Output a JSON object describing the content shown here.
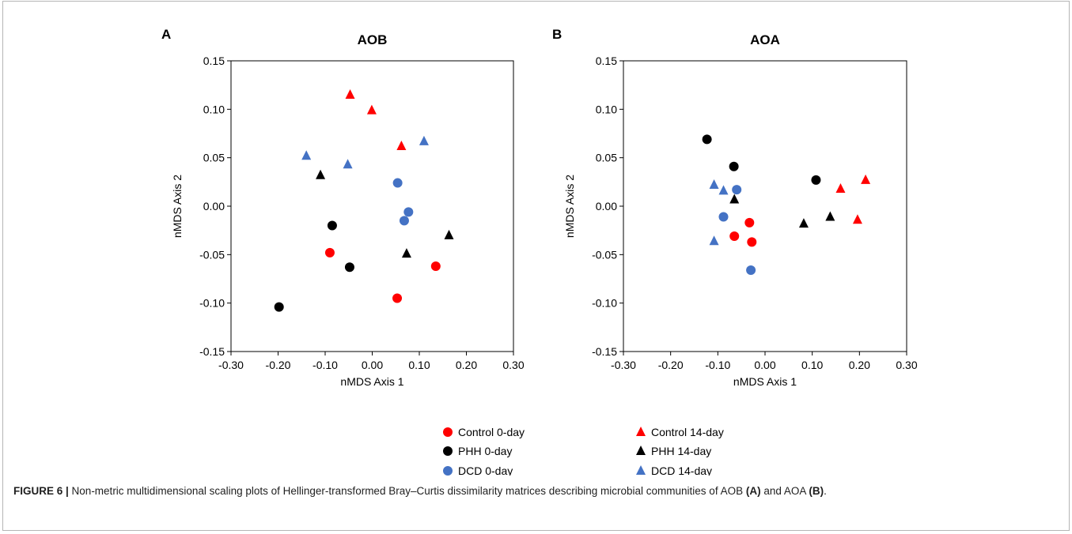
{
  "chart_data": [
    {
      "type": "scatter",
      "panel": "A",
      "title": "AOB",
      "xlabel": "nMDS Axis 1",
      "ylabel": "nMDS Axis 2",
      "xlim": [
        -0.3,
        0.3
      ],
      "ylim": [
        -0.15,
        0.15
      ],
      "xticks": [
        "-0.30",
        "-0.20",
        "-0.10",
        "0.00",
        "0.10",
        "0.20",
        "0.30"
      ],
      "yticks": [
        "0.15",
        "0.10",
        "0.05",
        "0.00",
        "-0.05",
        "-0.10",
        "-0.15"
      ],
      "grid": false,
      "series": [
        {
          "name": "Control 0-day",
          "marker": "circle",
          "color": "#ff0000",
          "x": [
            -0.09,
            0.053,
            0.135
          ],
          "y": [
            -0.048,
            -0.095,
            -0.062
          ]
        },
        {
          "name": "Control 14-day",
          "marker": "triangle",
          "color": "#ff0000",
          "x": [
            -0.047,
            -0.001,
            0.062
          ],
          "y": [
            0.115,
            0.099,
            0.062
          ]
        },
        {
          "name": "PHH 0-day",
          "marker": "circle",
          "color": "#000000",
          "x": [
            -0.198,
            -0.085,
            -0.048
          ],
          "y": [
            -0.104,
            -0.02,
            -0.063
          ]
        },
        {
          "name": "PHH 14-day",
          "marker": "triangle",
          "color": "#000000",
          "x": [
            -0.11,
            0.073,
            0.163
          ],
          "y": [
            0.032,
            -0.049,
            -0.03
          ]
        },
        {
          "name": "DCD 0-day",
          "marker": "circle",
          "color": "#4472c4",
          "x": [
            0.054,
            0.077,
            0.068
          ],
          "y": [
            0.024,
            -0.006,
            -0.015
          ]
        },
        {
          "name": "DCD 14-day",
          "marker": "triangle",
          "color": "#4472c4",
          "x": [
            -0.14,
            -0.052,
            0.11
          ],
          "y": [
            0.052,
            0.043,
            0.067
          ]
        }
      ]
    },
    {
      "type": "scatter",
      "panel": "B",
      "title": "AOA",
      "xlabel": "nMDS Axis 1",
      "ylabel": "nMDS Axis 2",
      "xlim": [
        -0.3,
        0.3
      ],
      "ylim": [
        -0.15,
        0.15
      ],
      "xticks": [
        "-0.30",
        "-0.20",
        "-0.10",
        "0.00",
        "0.10",
        "0.20",
        "0.30"
      ],
      "yticks": [
        "0.15",
        "0.10",
        "0.05",
        "0.00",
        "-0.05",
        "-0.10",
        "-0.15"
      ],
      "grid": false,
      "series": [
        {
          "name": "Control 0-day",
          "marker": "circle",
          "color": "#ff0000",
          "x": [
            -0.033,
            -0.065,
            -0.028
          ],
          "y": [
            -0.017,
            -0.031,
            -0.037
          ]
        },
        {
          "name": "Control 14-day",
          "marker": "triangle",
          "color": "#ff0000",
          "x": [
            0.16,
            0.213,
            0.196
          ],
          "y": [
            0.018,
            0.027,
            -0.014
          ]
        },
        {
          "name": "PHH 0-day",
          "marker": "circle",
          "color": "#000000",
          "x": [
            -0.123,
            -0.066,
            0.108
          ],
          "y": [
            0.069,
            0.041,
            0.027
          ]
        },
        {
          "name": "PHH 14-day",
          "marker": "triangle",
          "color": "#000000",
          "x": [
            -0.065,
            0.082,
            0.138
          ],
          "y": [
            0.007,
            -0.018,
            -0.011
          ]
        },
        {
          "name": "DCD 0-day",
          "marker": "circle",
          "color": "#4472c4",
          "x": [
            -0.06,
            -0.088,
            -0.03
          ],
          "y": [
            0.017,
            -0.011,
            -0.066
          ]
        },
        {
          "name": "DCD 14-day",
          "marker": "triangle",
          "color": "#4472c4",
          "x": [
            -0.108,
            -0.088,
            -0.108
          ],
          "y": [
            0.022,
            0.016,
            -0.036
          ]
        }
      ]
    }
  ],
  "legend": {
    "placement": "bottom-center",
    "items": [
      {
        "label": "Control 0-day",
        "marker": "circle",
        "color": "#ff0000"
      },
      {
        "label": "Control 14-day",
        "marker": "triangle",
        "color": "#ff0000"
      },
      {
        "label": "PHH 0-day",
        "marker": "circle",
        "color": "#000000"
      },
      {
        "label": "PHH 14-day",
        "marker": "triangle",
        "color": "#000000"
      },
      {
        "label": "DCD 0-day",
        "marker": "circle",
        "color": "#4472c4"
      },
      {
        "label": "DCD 14-day",
        "marker": "triangle",
        "color": "#4472c4"
      }
    ]
  },
  "caption": {
    "figure_label": "FIGURE 6 |",
    "text_1": " Non-metric multidimensional scaling plots of Hellinger-transformed Bray–Curtis dissimilarity matrices describing microbial communities of AOB ",
    "ref_a": "(A)",
    "text_2": " and AOA ",
    "ref_b": "(B)",
    "text_3": "."
  }
}
